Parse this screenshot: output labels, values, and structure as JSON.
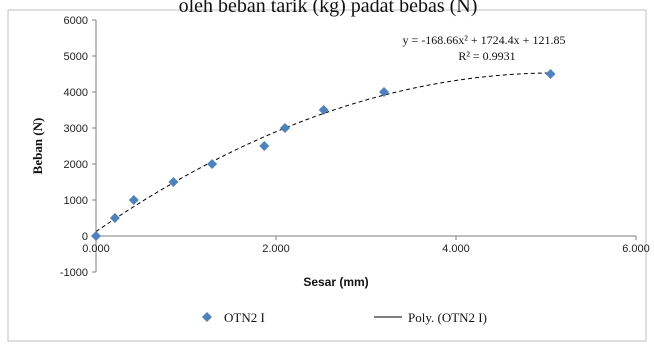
{
  "caption_fragment": "oleh beban tarik (kg) padat bebas (N)",
  "chart_data": {
    "type": "scatter",
    "xlabel": "Sesar (mm)",
    "ylabel": "Beban (N)",
    "xlim": [
      0,
      6
    ],
    "ylim": [
      -1000,
      6000
    ],
    "x_ticks": [
      "0.000",
      "2.000",
      "4.000",
      "6.000"
    ],
    "y_ticks": [
      "-1000",
      "0",
      "1000",
      "2000",
      "3000",
      "4000",
      "5000",
      "6000"
    ],
    "grid": false,
    "series": [
      {
        "name": "OTN2 I",
        "marker": "diamond",
        "color": "#4f81bd",
        "x": [
          0.0,
          0.21,
          0.42,
          0.86,
          1.29,
          1.87,
          2.1,
          2.53,
          3.2,
          5.05
        ],
        "y": [
          0,
          500,
          1000,
          1500,
          2000,
          2500,
          3000,
          3500,
          4000,
          4500
        ]
      }
    ],
    "trendline": {
      "name": "Poly. (OTN2 I)",
      "type": "polynomial",
      "coefficients": [
        -168.66,
        1724.4,
        121.85
      ],
      "x_range": [
        0,
        5.05
      ],
      "style": "dashed",
      "color": "#000000",
      "equation_label": "y = -168.66x² + 1724.4x + 121.85",
      "r2_label": "R² = 0.9931"
    },
    "legend": {
      "placement": "bottom",
      "entries": [
        "OTN2 I",
        "Poly. (OTN2 I)"
      ]
    }
  }
}
